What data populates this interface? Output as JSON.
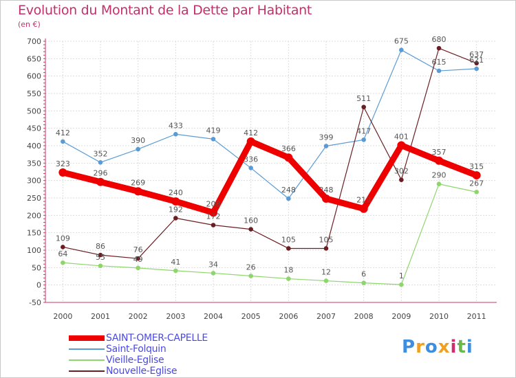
{
  "title": "Evolution du Montant de la Dette par Habitant",
  "subtitle": "(en €)",
  "logo": {
    "letters": [
      "P",
      "r",
      "o",
      "x",
      "i",
      "t",
      "i"
    ],
    "colors": [
      "#3d8de0",
      "#f0a020",
      "#3d8de0",
      "#f0a020",
      "#d02b6e",
      "#6ab84a",
      "#3d8de0"
    ]
  },
  "chart_data": {
    "type": "line",
    "x": [
      "2000",
      "2001",
      "2002",
      "2003",
      "2004",
      "2005",
      "2006",
      "2007",
      "2008",
      "2009",
      "2010",
      "2011"
    ],
    "ylim": [
      -50,
      700
    ],
    "yticks": [
      "-50",
      "0",
      "50",
      "100",
      "150",
      "200",
      "250",
      "300",
      "350",
      "400",
      "450",
      "500",
      "550",
      "600",
      "650",
      "700"
    ],
    "grid": true,
    "legend_position": "bottom-left",
    "series": [
      {
        "name": "SAINT-OMER-CAPELLE",
        "color": "#ee0000",
        "values": [
          323,
          296,
          269,
          240,
          208,
          412,
          366,
          248,
          219,
          401,
          357,
          315
        ],
        "labels": [
          "323",
          "296",
          "269",
          "240",
          "208",
          "412",
          "366",
          "248",
          "219",
          "401",
          "357",
          "315"
        ]
      },
      {
        "name": "Saint-Folquin",
        "color": "#5b9bd5",
        "values": [
          412,
          352,
          390,
          433,
          419,
          336,
          248,
          399,
          417,
          675,
          615,
          621
        ],
        "labels": [
          "412",
          "352",
          "390",
          "433",
          "419",
          "336",
          "248",
          "399",
          "417",
          "675",
          "615",
          "621"
        ]
      },
      {
        "name": "Vieille-Eglise",
        "color": "#8ed66b",
        "values": [
          64,
          55,
          49,
          41,
          34,
          26,
          18,
          12,
          6,
          1,
          290,
          267
        ],
        "labels": [
          "64",
          "55",
          "49",
          "41",
          "34",
          "26",
          "18",
          "12",
          "6",
          "1",
          "290",
          "267"
        ]
      },
      {
        "name": "Nouvelle-Eglise",
        "color": "#6b1e22",
        "values": [
          109,
          86,
          76,
          192,
          172,
          160,
          105,
          105,
          511,
          302,
          680,
          637
        ],
        "labels": [
          "109",
          "86",
          "76",
          "192",
          "172",
          "160",
          "105",
          "105",
          "511",
          "302",
          "680",
          "637"
        ]
      }
    ]
  }
}
